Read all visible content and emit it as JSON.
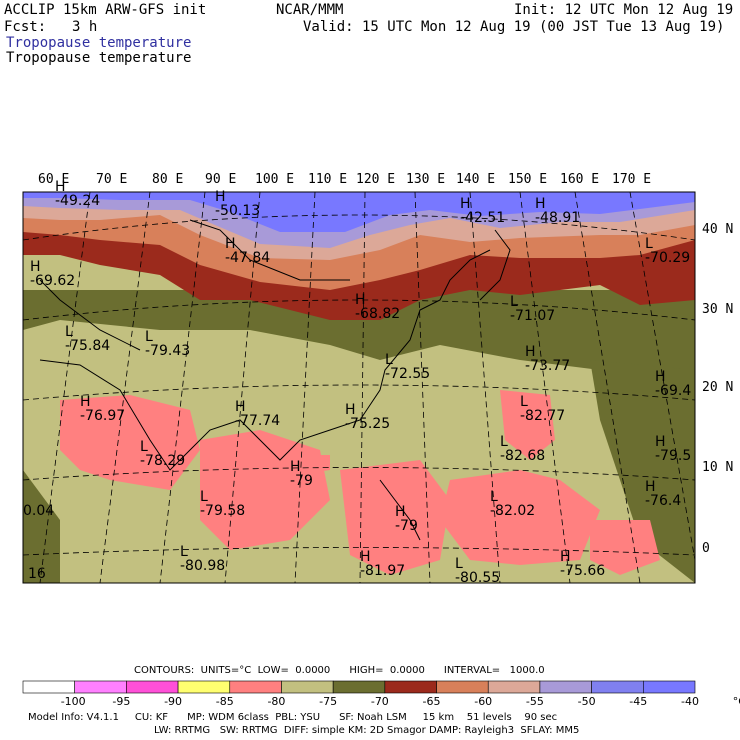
{
  "header": {
    "title_left": "ACCLIP 15km ARW-GFS init",
    "center": "NCAR/MMM",
    "init": "Init: 12 UTC Mon 12 Aug 19",
    "fcst_label": "Fcst:",
    "fcst_value": "3 h",
    "valid": "Valid: 15 UTC Mon 12 Aug 19 (00 JST Tue 13 Aug 19)",
    "field_blue": "Tropopause temperature",
    "field_black": "Tropopause temperature"
  },
  "colors": {
    "c_lt_-95": "#ff80ff",
    "c_-95_-90": "#ff50d8",
    "c_-90_-85": "#ffff70",
    "c_-85_-80": "#ff8080",
    "c_-80_-75": "#c2c080",
    "c_-75_-70": "#6b6e30",
    "c_-70_-65": "#9b2a1c",
    "c_-65_-60": "#d8805a",
    "c_-60_-55": "#dca898",
    "c_-55_-50": "#a89ad8",
    "c_-50_-45": "#8080f0",
    "c_gt_-45": "#7878ff"
  },
  "lon_labels": [
    "60 E",
    "70 E",
    "80 E",
    "90 E",
    "100 E",
    "110 E",
    "120 E",
    "130 E",
    "140 E",
    "150 E",
    "160 E",
    "170 E"
  ],
  "lat_labels": [
    "40 N",
    "30 N",
    "20 N",
    "10 N",
    "0"
  ],
  "hl_labels": [
    {
      "t": "H",
      "v": "-49.24"
    },
    {
      "t": "H",
      "v": "-50.13"
    },
    {
      "t": "H",
      "v": "-47.84"
    },
    {
      "t": "H",
      "v": "-42.51"
    },
    {
      "t": "H",
      "v": "-48.91"
    },
    {
      "t": "L",
      "v": "-70.29"
    },
    {
      "t": "H",
      "v": "-69.62"
    },
    {
      "t": "H",
      "v": "-68.82"
    },
    {
      "t": "L",
      "v": "-71.07"
    },
    {
      "t": "L",
      "v": "-75.84"
    },
    {
      "t": "L",
      "v": "-79.43"
    },
    {
      "t": "L",
      "v": "-72.55"
    },
    {
      "t": "H",
      "v": "-73.77"
    },
    {
      "t": "H",
      "v": "-76.97"
    },
    {
      "t": "H",
      "v": "-77.74"
    },
    {
      "t": "H",
      "v": "-75.25"
    },
    {
      "t": "L",
      "v": "-82.77"
    },
    {
      "t": "H",
      "v": "-69.4"
    },
    {
      "t": "L",
      "v": "-78.29"
    },
    {
      "t": "L",
      "v": "-82.68"
    },
    {
      "t": "H",
      "v": "-79.5"
    },
    {
      "t": "H",
      "v": "-79"
    },
    {
      "t": "L",
      "v": "-79.58"
    },
    {
      "t": "L",
      "v": "-82.02"
    },
    {
      "t": "H",
      "v": "-76.4"
    },
    {
      "t": "H",
      "v": "-79"
    },
    {
      "t": "",
      "v": "0.04"
    },
    {
      "t": "L",
      "v": "-80.98"
    },
    {
      "t": "H",
      "v": "-81.97"
    },
    {
      "t": "H",
      "v": "-75.66"
    },
    {
      "t": "",
      "v": "16"
    },
    {
      "t": "L",
      "v": "-80.55"
    }
  ],
  "footer": {
    "contours": "CONTOURS:  UNITS=°C  LOW=  0.0000      HIGH=  0.0000      INTERVAL=   1000.0",
    "model_info": "Model Info: V4.1.1     CU: KF      MP: WDM 6class  PBL: YSU      SF: Noah LSM     15 km    51 levels    90 sec",
    "model_info2": "LW: RRTMG   SW: RRTMG  DIFF: simple KM: 2D Smagor DAMP: Rayleigh3  SFLAY: MM5"
  },
  "colorbar_labels": [
    "-100",
    "-95",
    "-90",
    "-85",
    "-80",
    "-75",
    "-70",
    "-65",
    "-60",
    "-55",
    "-50",
    "-45",
    "-40",
    "°C"
  ]
}
